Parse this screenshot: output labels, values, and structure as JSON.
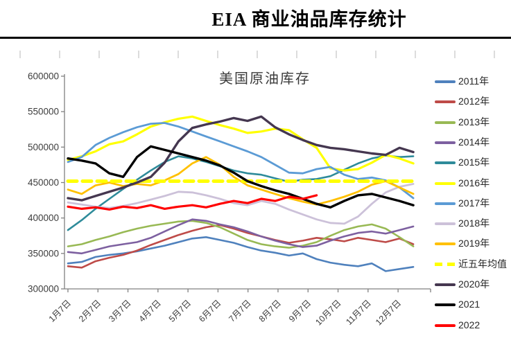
{
  "header": {
    "title": "EIA 商业油品库存统计"
  },
  "chart_data": {
    "type": "line",
    "title": "美国原油库存",
    "value_unit": "thousand barrels (axis shows value × 1000)",
    "value_scale": 1000,
    "ylim": [
      300000,
      600000
    ],
    "y_tick_step": 50000,
    "y_tick_labels": [
      "600000",
      "550000",
      "500000",
      "450000",
      "400000",
      "350000",
      "300000"
    ],
    "x_tick_labels": [
      "1月7日",
      "2月7日",
      "3月7日",
      "4月7日",
      "5月7日",
      "6月7日",
      "7月7日",
      "8月7日",
      "9月7日",
      "10月7日",
      "11月7日",
      "12月7日"
    ],
    "x_weeks": [
      1,
      3,
      5,
      7,
      9,
      11,
      13,
      15,
      17,
      19,
      21,
      23,
      25,
      27,
      29,
      31,
      33,
      35,
      37,
      39,
      41,
      43,
      45,
      47,
      49,
      51
    ],
    "legend_position": "right",
    "grid": false,
    "axis_color": "#808080",
    "label_color": "#3d3d3d",
    "series": [
      {
        "name": "2011年",
        "color": "#4F81BD",
        "width": 2.6,
        "dash": null,
        "values": [
          336,
          338,
          345,
          348,
          350,
          353,
          357,
          361,
          366,
          371,
          373,
          369,
          365,
          359,
          354,
          351,
          347,
          350,
          342,
          337,
          334,
          332,
          336,
          325,
          328,
          331
        ]
      },
      {
        "name": "2012年",
        "color": "#BE4B48",
        "width": 2.6,
        "dash": null,
        "values": [
          332,
          330,
          339,
          344,
          348,
          354,
          362,
          369,
          376,
          382,
          387,
          390,
          385,
          379,
          374,
          369,
          365,
          368,
          372,
          370,
          367,
          372,
          369,
          366,
          371,
          363
        ]
      },
      {
        "name": "2013年",
        "color": "#98B954",
        "width": 2.6,
        "dash": null,
        "values": [
          360,
          363,
          369,
          374,
          380,
          385,
          389,
          392,
          395,
          396,
          393,
          387,
          378,
          369,
          363,
          360,
          358,
          361,
          366,
          375,
          383,
          388,
          391,
          385,
          373,
          360
        ]
      },
      {
        "name": "2014年",
        "color": "#7D60A0",
        "width": 2.6,
        "dash": null,
        "values": [
          352,
          350,
          355,
          360,
          363,
          366,
          372,
          381,
          390,
          398,
          396,
          391,
          387,
          381,
          374,
          368,
          363,
          359,
          361,
          368,
          374,
          379,
          381,
          378,
          383,
          388
        ]
      },
      {
        "name": "2015年",
        "color": "#2E8B9A",
        "width": 2.6,
        "dash": null,
        "values": [
          383,
          397,
          413,
          427,
          441,
          454,
          467,
          479,
          487,
          484,
          479,
          473,
          467,
          463,
          461,
          456,
          451,
          454,
          455,
          459,
          468,
          477,
          484,
          488,
          486,
          487
        ]
      },
      {
        "name": "2016年",
        "color": "#FFFF00",
        "width": 3.2,
        "dash": null,
        "values": [
          482,
          487,
          494,
          504,
          508,
          518,
          529,
          535,
          540,
          543,
          537,
          531,
          526,
          520,
          522,
          526,
          524,
          511,
          499,
          470,
          467,
          469,
          478,
          489,
          484,
          477
        ]
      },
      {
        "name": "2017年",
        "color": "#5B9BD5",
        "width": 2.8,
        "dash": null,
        "values": [
          479,
          486,
          503,
          513,
          521,
          528,
          533,
          534,
          529,
          522,
          515,
          508,
          501,
          494,
          486,
          475,
          464,
          463,
          469,
          472,
          461,
          455,
          457,
          453,
          443,
          428
        ]
      },
      {
        "name": "2018年",
        "color": "#CCC1D9",
        "width": 2.8,
        "dash": null,
        "values": [
          422,
          419,
          416,
          414,
          417,
          421,
          426,
          431,
          437,
          436,
          432,
          427,
          421,
          418,
          424,
          420,
          412,
          405,
          398,
          393,
          392,
          402,
          420,
          436,
          444,
          448
        ]
      },
      {
        "name": "2019年",
        "color": "#FFC000",
        "width": 2.8,
        "dash": null,
        "values": [
          440,
          434,
          446,
          450,
          445,
          448,
          446,
          453,
          462,
          477,
          486,
          475,
          458,
          446,
          440,
          434,
          428,
          423,
          419,
          424,
          430,
          437,
          447,
          452,
          443,
          434
        ]
      },
      {
        "name": "近五年均值",
        "color": "#FFFF00",
        "width": 5,
        "dash": "13 8",
        "values": [
          452,
          452,
          452,
          452,
          452,
          452,
          452,
          452,
          452,
          452,
          452,
          452,
          452,
          452,
          452,
          452,
          452,
          452,
          452,
          452,
          452,
          452,
          452,
          452,
          452,
          452
        ]
      },
      {
        "name": "2020年",
        "color": "#453750",
        "width": 3.4,
        "dash": null,
        "values": [
          428,
          425,
          431,
          437,
          443,
          450,
          458,
          478,
          508,
          527,
          532,
          536,
          541,
          537,
          543,
          528,
          518,
          510,
          503,
          499,
          497,
          494,
          491,
          489,
          499,
          493
        ]
      },
      {
        "name": "2021",
        "color": "#000000",
        "width": 3.4,
        "dash": null,
        "values": [
          484,
          481,
          477,
          463,
          458,
          486,
          501,
          496,
          491,
          486,
          481,
          474,
          464,
          452,
          445,
          439,
          434,
          427,
          420,
          415,
          424,
          432,
          434,
          429,
          424,
          418
        ]
      },
      {
        "name": "2022",
        "color": "#FF0000",
        "width": 3.2,
        "dash": null,
        "values": [
          416,
          413,
          415,
          412,
          416,
          414,
          418,
          413,
          416,
          418,
          415,
          420,
          424,
          421,
          427,
          424,
          430,
          427,
          432
        ]
      }
    ]
  }
}
